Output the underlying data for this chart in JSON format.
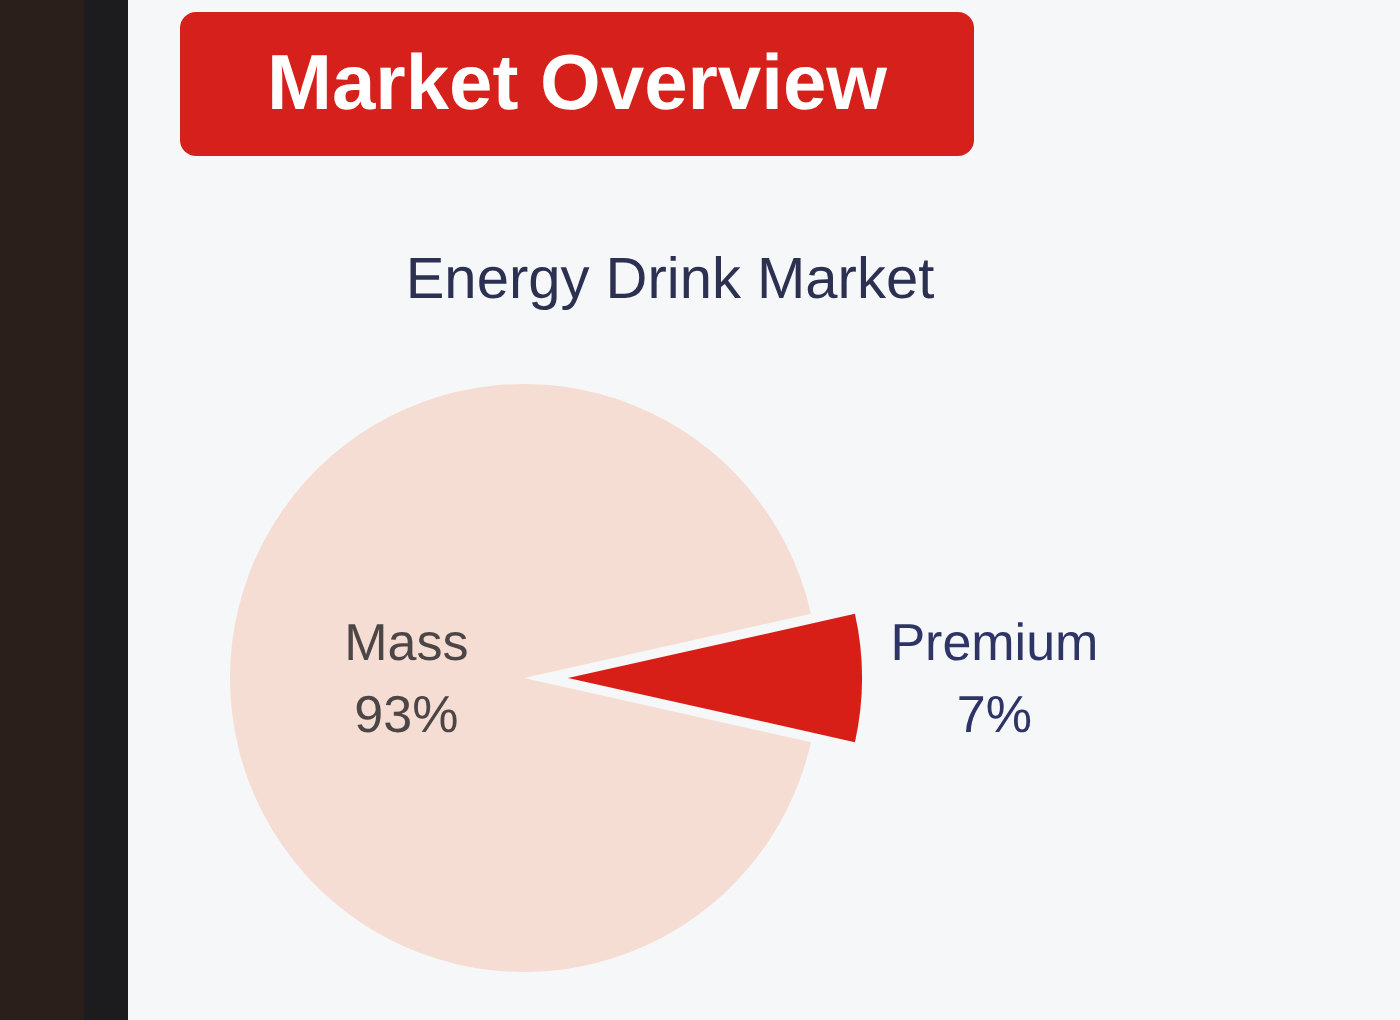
{
  "chart_data": {
    "type": "pie",
    "title": "Market Overview",
    "subtitle": "Energy Drink Market",
    "categories": [
      "Mass",
      "Premium"
    ],
    "values": [
      93,
      7
    ],
    "colors": [
      "#f6ddd3",
      "#d71f18"
    ],
    "value_labels": [
      "93%",
      "7%"
    ]
  }
}
